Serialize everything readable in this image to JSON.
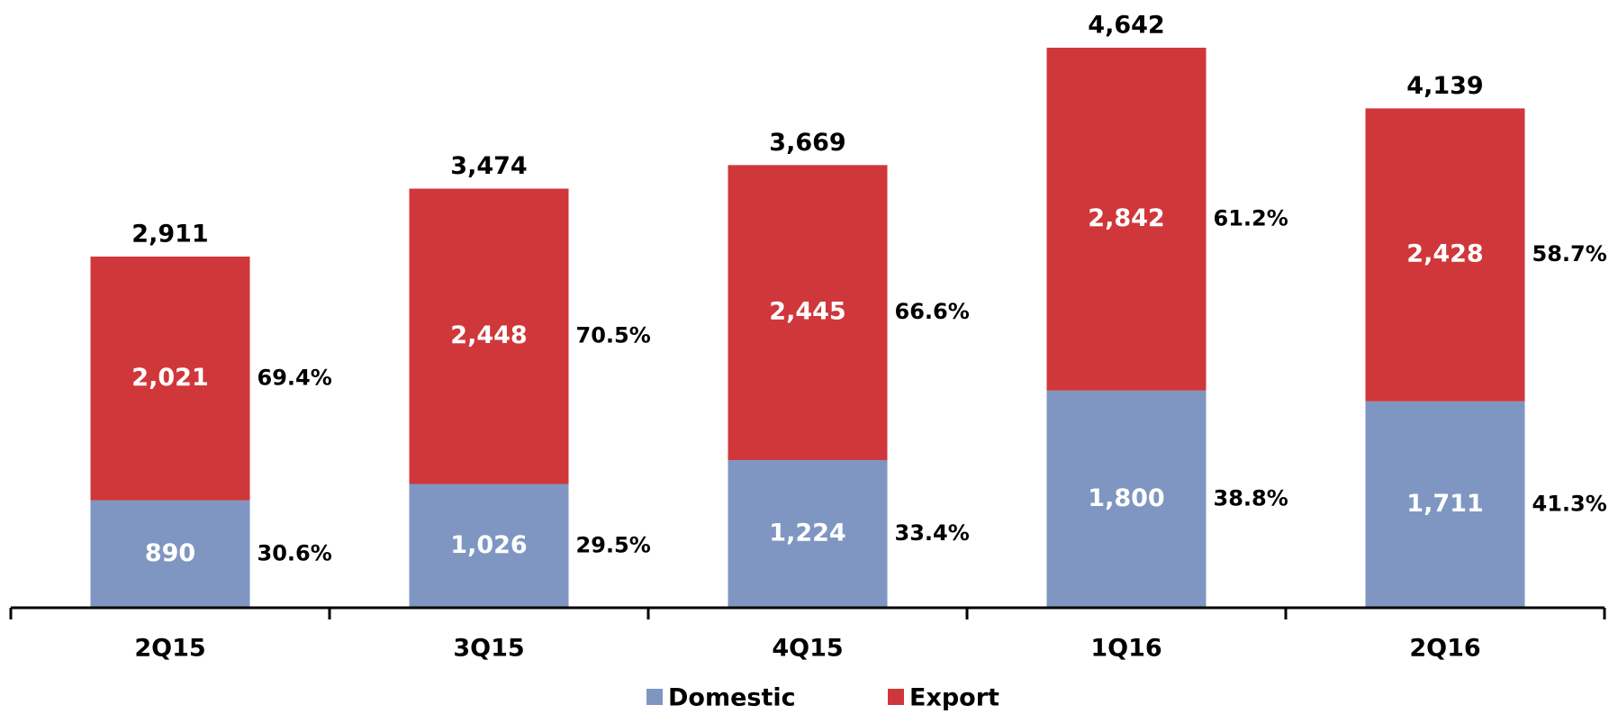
{
  "chart_data": {
    "type": "stacked_bar",
    "categories": [
      "2Q15",
      "3Q15",
      "4Q15",
      "1Q16",
      "2Q16"
    ],
    "series": [
      {
        "name": "Domestic",
        "color": "#7f96c2",
        "values": [
          890,
          1026,
          1224,
          1800,
          1711
        ],
        "value_labels": [
          "890",
          "1,026",
          "1,224",
          "1,800",
          "1,711"
        ],
        "shares": [
          30.6,
          29.5,
          33.4,
          38.8,
          41.3
        ],
        "share_labels": [
          "30.6%",
          "29.5%",
          "33.4%",
          "38.8%",
          "41.3%"
        ]
      },
      {
        "name": "Export",
        "color": "#d0373a",
        "values": [
          2021,
          2448,
          2445,
          2842,
          2428
        ],
        "value_labels": [
          "2,021",
          "2,448",
          "2,445",
          "2,842",
          "2,428"
        ],
        "shares": [
          69.4,
          70.5,
          66.6,
          61.2,
          58.7
        ],
        "share_labels": [
          "69.4%",
          "70.5%",
          "66.6%",
          "61.2%",
          "58.7%"
        ]
      }
    ],
    "totals": [
      2911,
      3474,
      3669,
      4642,
      4139
    ],
    "total_labels": [
      "2,911",
      "3,474",
      "3,669",
      "4,642",
      "4,139"
    ],
    "ylim": [
      0,
      5000
    ],
    "legend": "bottom"
  }
}
